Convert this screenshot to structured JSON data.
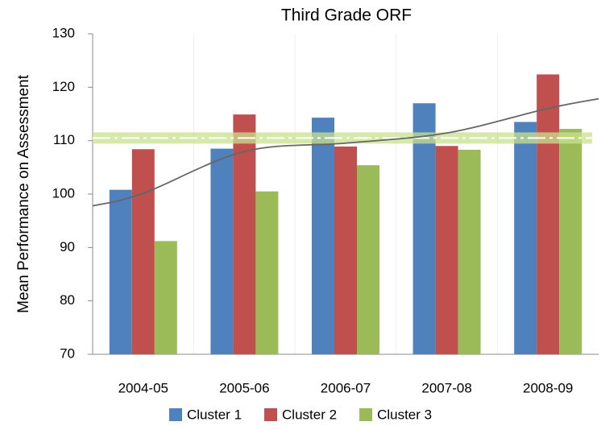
{
  "chart_data": {
    "type": "bar",
    "title": "Third Grade ORF",
    "y_label": "Mean Performance on Assessment",
    "categories": [
      "2004-05",
      "2005-06",
      "2006-07",
      "2007-08",
      "2008-09"
    ],
    "series": [
      {
        "name": "Cluster 1",
        "color": "#4f81bd",
        "values": [
          100.8,
          108.5,
          114.3,
          117.0,
          113.5
        ]
      },
      {
        "name": "Cluster 2",
        "color": "#c0504d",
        "values": [
          108.4,
          114.9,
          108.9,
          109.0,
          122.4
        ]
      },
      {
        "name": "Cluster 3",
        "color": "#9bbb59",
        "values": [
          91.2,
          100.5,
          105.4,
          108.3,
          112.2
        ]
      }
    ],
    "reference_line": 110.5,
    "trendline": true,
    "ylim": [
      70,
      130
    ],
    "yticks": [
      70,
      80,
      90,
      100,
      110,
      120,
      130
    ],
    "grid": false,
    "legend": "bottom"
  }
}
